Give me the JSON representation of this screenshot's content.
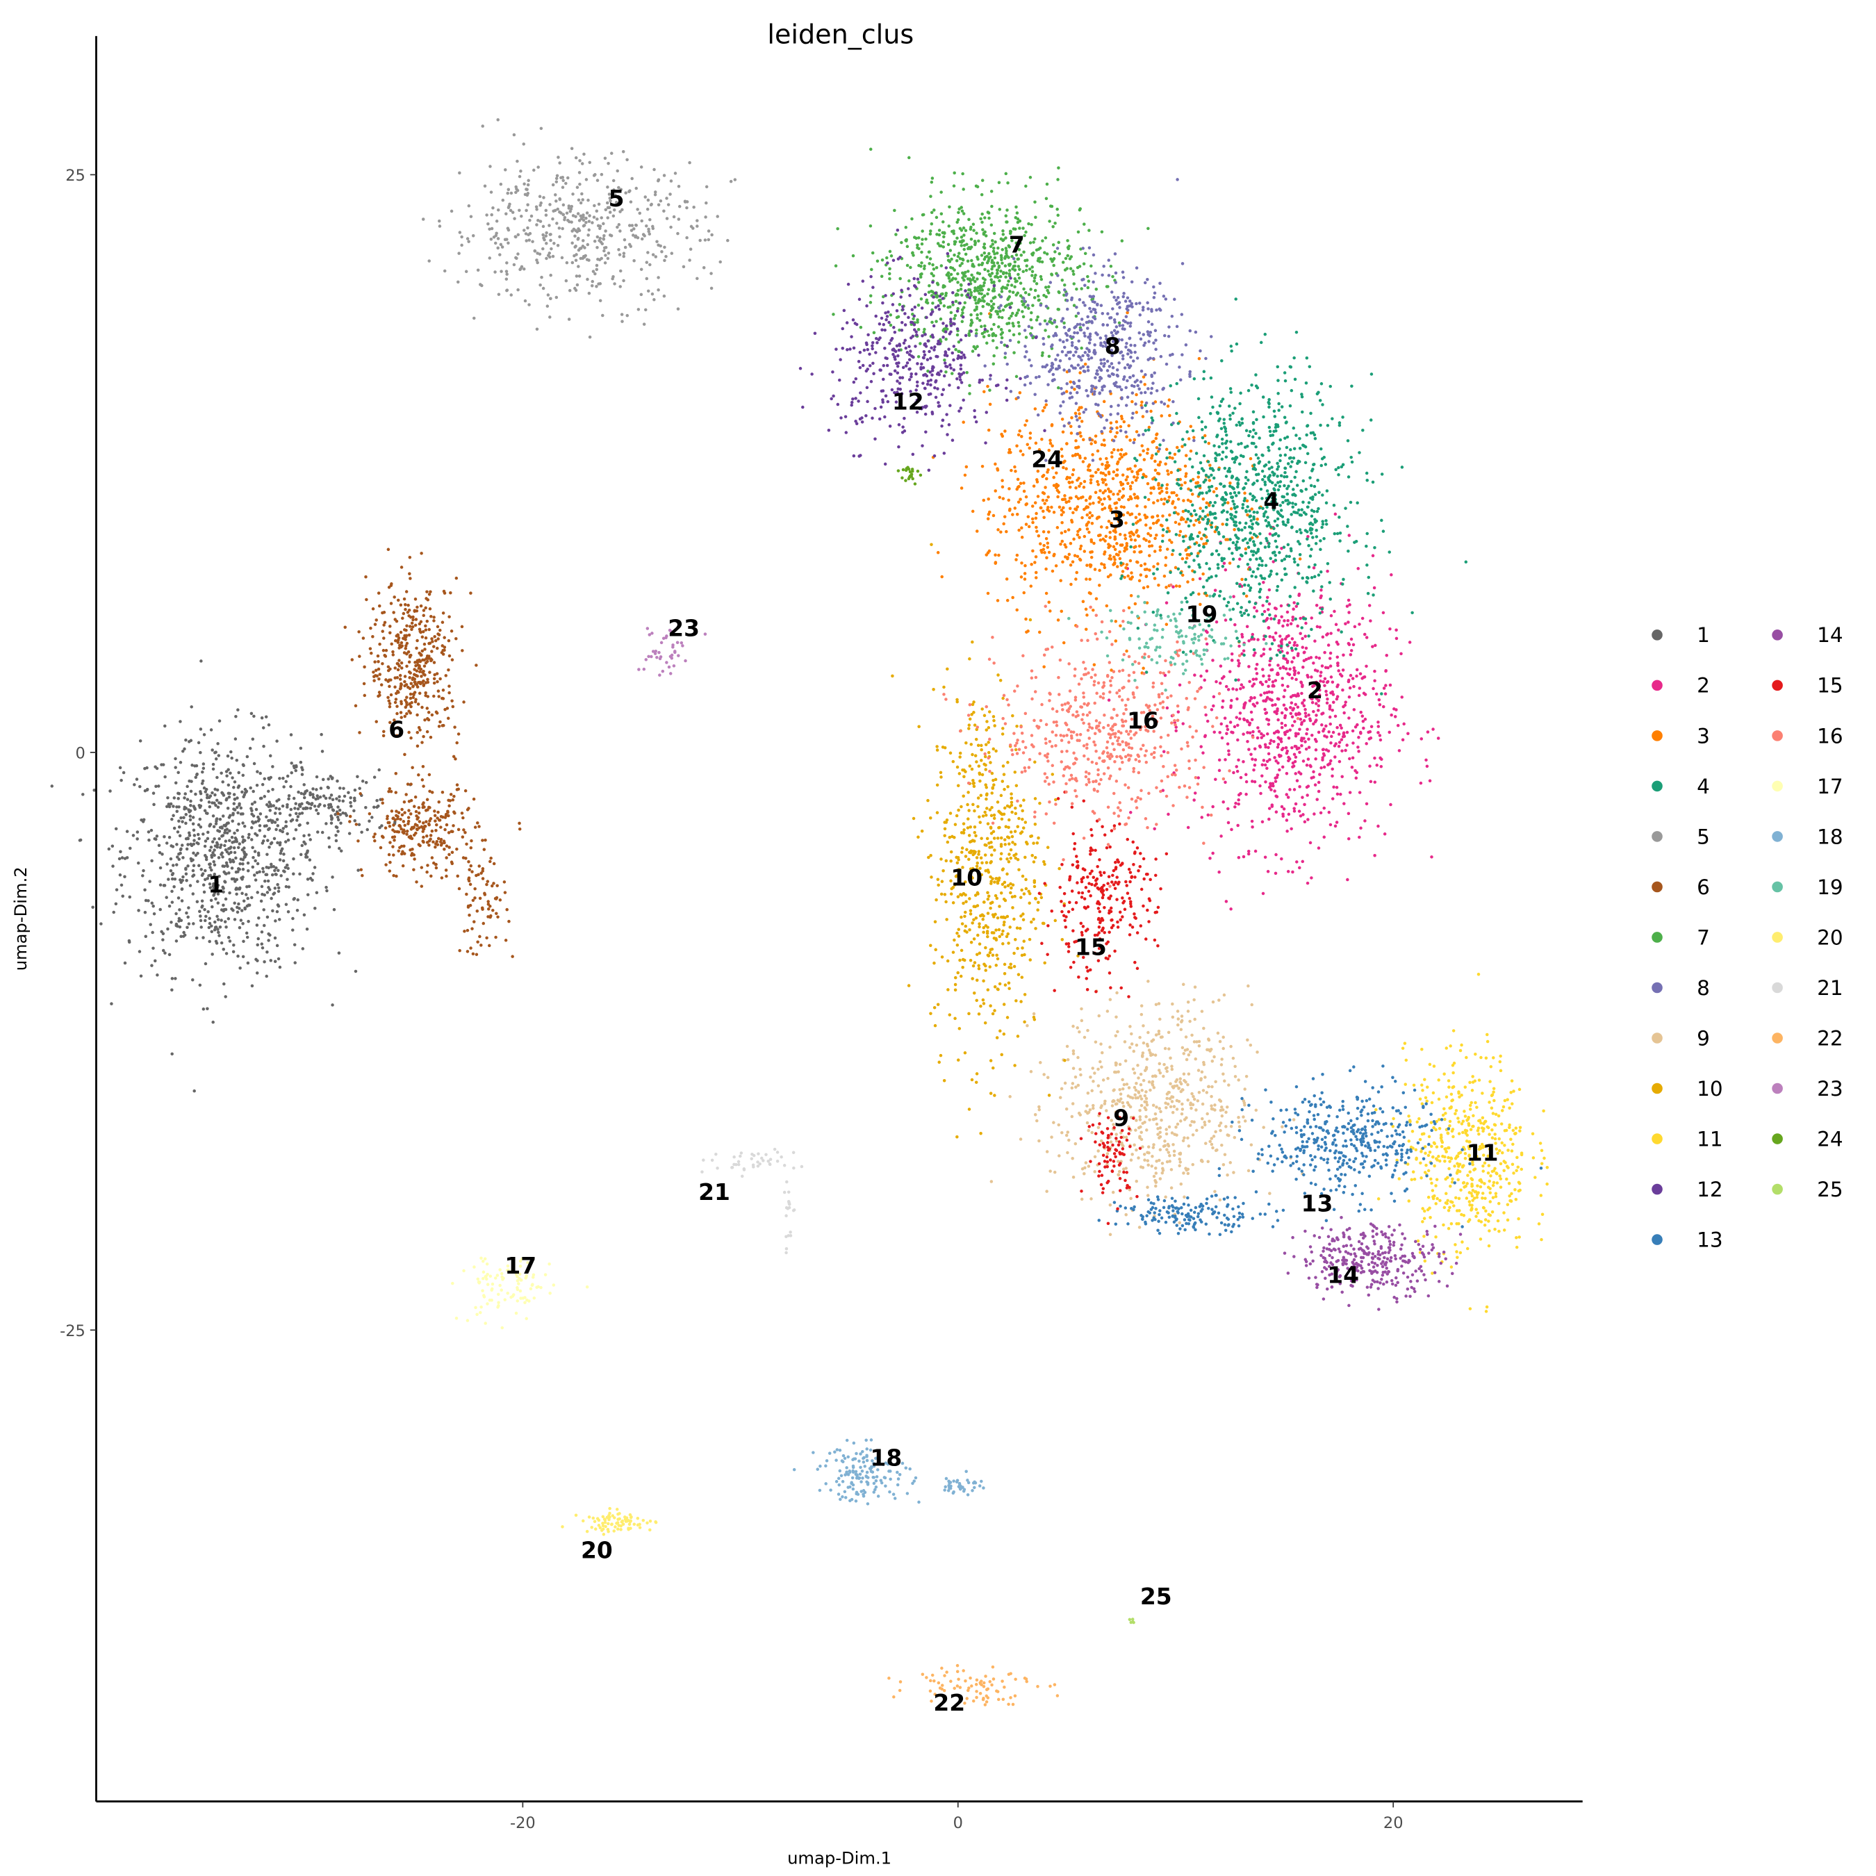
{
  "chart_data": {
    "type": "scatter",
    "title": "leiden_clus",
    "xlabel": "umap-Dim.1",
    "ylabel": "umap-Dim.2",
    "xlim": [
      -39.6,
      28.7
    ],
    "ylim": [
      -45.4,
      31.0
    ],
    "xticks": [
      -20,
      0,
      20
    ],
    "yticks": [
      25,
      0,
      -25
    ],
    "grid": false,
    "legend_position": "right",
    "legend_title": "",
    "clusters": [
      {
        "name": "1",
        "color": "#666666",
        "label_pos": [
          -34.1,
          -5.7
        ],
        "blobs": [
          [
            -33.8,
            -4.4,
            3.0,
            3.4,
            900
          ],
          [
            -29.1,
            -2.3,
            2.0,
            1.0,
            150
          ]
        ]
      },
      {
        "name": "2",
        "color": "#E7298A",
        "label_pos": [
          16.4,
          2.7
        ],
        "blobs": [
          [
            15.4,
            1.8,
            3.0,
            3.9,
            900
          ]
        ]
      },
      {
        "name": "3",
        "color": "#FF7F00",
        "label_pos": [
          7.3,
          10.1
        ],
        "blobs": [
          [
            6.8,
            10.7,
            3.6,
            3.1,
            900
          ]
        ]
      },
      {
        "name": "4",
        "color": "#1B9E77",
        "label_pos": [
          14.4,
          10.9
        ],
        "blobs": [
          [
            13.7,
            10.7,
            3.0,
            3.6,
            900
          ]
        ]
      },
      {
        "name": "5",
        "color": "#999999",
        "label_pos": [
          -15.7,
          24.0
        ],
        "blobs": [
          [
            -17.5,
            22.6,
            3.9,
            2.1,
            500
          ]
        ]
      },
      {
        "name": "6",
        "color": "#A6561D",
        "label_pos": [
          -25.8,
          1.0
        ],
        "blobs": [
          [
            -25.0,
            3.9,
            1.4,
            2.3,
            400
          ],
          [
            -24.7,
            -3.4,
            1.7,
            1.3,
            250
          ],
          [
            -21.9,
            -6.5,
            0.8,
            1.5,
            80
          ]
        ]
      },
      {
        "name": "7",
        "color": "#4DAF4A",
        "label_pos": [
          2.7,
          22.0
        ],
        "blobs": [
          [
            1.3,
            20.6,
            3.0,
            2.3,
            800
          ]
        ]
      },
      {
        "name": "8",
        "color": "#7570B3",
        "label_pos": [
          7.1,
          17.6
        ],
        "blobs": [
          [
            6.5,
            17.4,
            2.5,
            2.3,
            500
          ]
        ]
      },
      {
        "name": "9",
        "color": "#E5C494",
        "label_pos": [
          7.5,
          -15.8
        ],
        "blobs": [
          [
            9.0,
            -15.3,
            3.0,
            2.9,
            600
          ]
        ]
      },
      {
        "name": "10",
        "color": "#E6AB02",
        "label_pos": [
          0.4,
          -5.4
        ],
        "blobs": [
          [
            1.3,
            -4.9,
            1.7,
            5.2,
            600
          ]
        ]
      },
      {
        "name": "11",
        "color": "#FFD92F",
        "label_pos": [
          24.1,
          -17.3
        ],
        "blobs": [
          [
            23.4,
            -17.4,
            1.9,
            2.9,
            500
          ]
        ]
      },
      {
        "name": "12",
        "color": "#6A3D9A",
        "label_pos": [
          -2.3,
          15.2
        ],
        "blobs": [
          [
            -2.0,
            16.9,
            2.5,
            2.3,
            400
          ]
        ]
      },
      {
        "name": "13",
        "color": "#377EB8",
        "label_pos": [
          16.5,
          -19.5
        ],
        "blobs": [
          [
            17.8,
            -16.9,
            2.8,
            1.6,
            400
          ],
          [
            10.7,
            -20.0,
            2.2,
            0.5,
            150
          ]
        ]
      },
      {
        "name": "14",
        "color": "#984EA3",
        "label_pos": [
          17.7,
          -22.6
        ],
        "blobs": [
          [
            19.0,
            -21.9,
            2.2,
            1.0,
            300
          ]
        ]
      },
      {
        "name": "15",
        "color": "#E41A1C",
        "label_pos": [
          6.1,
          -8.4
        ],
        "blobs": [
          [
            6.5,
            -6.5,
            1.7,
            2.1,
            250
          ],
          [
            7.1,
            -17.4,
            0.8,
            1.2,
            80
          ]
        ]
      },
      {
        "name": "16",
        "color": "#FB8072",
        "label_pos": [
          8.5,
          1.4
        ],
        "blobs": [
          [
            6.8,
            0.8,
            3.3,
            2.6,
            500
          ]
        ]
      },
      {
        "name": "17",
        "color": "#FFFFB3",
        "label_pos": [
          -20.1,
          -22.2
        ],
        "blobs": [
          [
            -20.8,
            -23.2,
            1.4,
            1.0,
            100
          ]
        ]
      },
      {
        "name": "18",
        "color": "#80B1D3",
        "label_pos": [
          -3.3,
          -30.5
        ],
        "blobs": [
          [
            -4.3,
            -31.2,
            1.4,
            0.8,
            150
          ],
          [
            0.2,
            -31.7,
            0.6,
            0.3,
            40
          ]
        ]
      },
      {
        "name": "19",
        "color": "#66C2A5",
        "label_pos": [
          11.2,
          6.0
        ],
        "blobs": [
          [
            10.1,
            4.9,
            2.2,
            1.0,
            120
          ]
        ]
      },
      {
        "name": "20",
        "color": "#FFED6F",
        "label_pos": [
          -16.6,
          -34.5
        ],
        "blobs": [
          [
            -15.6,
            -33.3,
            1.1,
            0.3,
            80
          ]
        ]
      },
      {
        "name": "21",
        "color": "#D9D9D9",
        "label_pos": [
          -11.2,
          -19.0
        ],
        "blobs": [
          [
            -10.0,
            -17.7,
            1.7,
            0.3,
            40
          ],
          [
            -7.8,
            -20.0,
            0.2,
            1.2,
            20
          ]
        ]
      },
      {
        "name": "22",
        "color": "#FDB462",
        "label_pos": [
          -0.4,
          -41.1
        ],
        "blobs": [
          [
            0.7,
            -40.3,
            1.9,
            0.6,
            80
          ]
        ]
      },
      {
        "name": "23",
        "color": "#BC80BD",
        "label_pos": [
          -12.6,
          5.4
        ],
        "blobs": [
          [
            -13.6,
            4.4,
            0.8,
            0.8,
            40
          ]
        ]
      },
      {
        "name": "24",
        "color": "#66A61E",
        "label_pos": [
          4.1,
          12.7
        ],
        "blobs": [
          [
            -2.3,
            12.0,
            0.3,
            0.4,
            20
          ]
        ]
      },
      {
        "name": "25",
        "color": "#B3DE69",
        "label_pos": [
          9.1,
          -36.5
        ],
        "blobs": [
          [
            8.0,
            -37.6,
            0.1,
            0.1,
            5
          ]
        ]
      }
    ]
  }
}
